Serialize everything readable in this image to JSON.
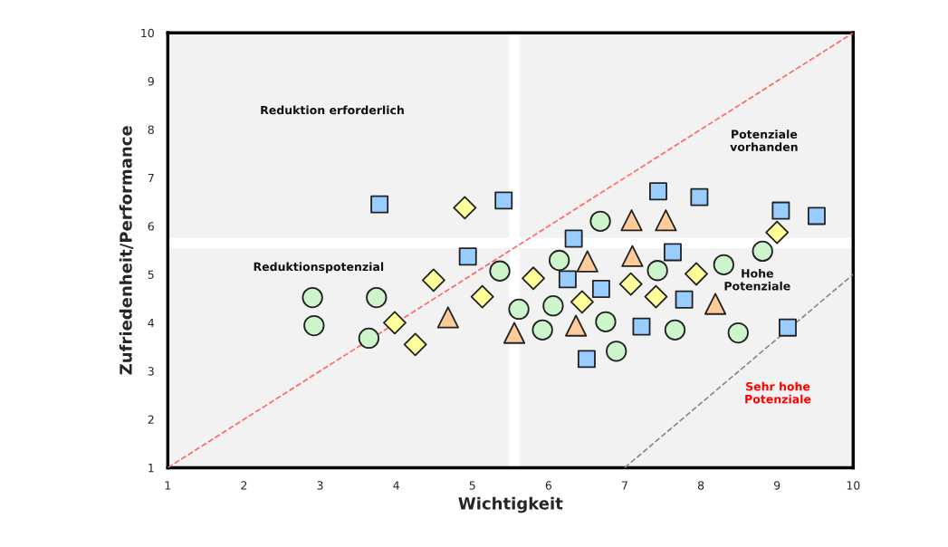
{
  "chart_data": {
    "type": "scatter",
    "xlabel": "Wichtigkeit",
    "ylabel": "Zufriedenheit/Performance",
    "xlim": [
      1,
      10
    ],
    "ylim": [
      1,
      10
    ],
    "xticks": [
      1,
      2,
      3,
      4,
      5,
      6,
      7,
      8,
      9,
      10
    ],
    "yticks": [
      1,
      2,
      3,
      4,
      5,
      6,
      7,
      8,
      9,
      10
    ],
    "grid": false,
    "legend": false,
    "series": [
      {
        "marker": "circle",
        "color": "#ccf5cc",
        "x": [
          2.9,
          2.92,
          3.74,
          3.64,
          5.36,
          5.61,
          5.92,
          6.14,
          6.06,
          6.68,
          6.75,
          6.89,
          7.43,
          7.66,
          8.3,
          8.49,
          8.81
        ],
        "values": [
          4.52,
          3.94,
          4.52,
          3.68,
          5.07,
          4.28,
          3.85,
          5.29,
          4.35,
          6.1,
          4.02,
          3.41,
          5.08,
          3.85,
          5.2,
          3.79,
          5.48
        ]
      },
      {
        "marker": "square",
        "color": "#99ccff",
        "x": [
          3.78,
          5.41,
          4.94,
          6.33,
          6.25,
          6.69,
          7.44,
          7.98,
          7.63,
          7.78,
          7.22,
          6.5,
          9.05,
          9.52,
          9.14
        ],
        "values": [
          6.45,
          6.53,
          5.37,
          5.74,
          4.9,
          4.7,
          6.72,
          6.6,
          5.46,
          4.48,
          3.92,
          3.25,
          6.32,
          6.21,
          3.9
        ]
      },
      {
        "marker": "diamond",
        "color": "#ffff99",
        "x": [
          4.9,
          4.49,
          5.13,
          3.98,
          4.25,
          5.8,
          6.44,
          7.08,
          7.41,
          7.94,
          9.0
        ],
        "values": [
          6.38,
          4.88,
          4.54,
          4.0,
          3.55,
          4.92,
          4.43,
          4.8,
          4.54,
          5.01,
          5.87
        ]
      },
      {
        "marker": "triangle",
        "color": "#ffcc99",
        "x": [
          4.68,
          5.55,
          7.09,
          7.54,
          6.51,
          7.1,
          6.36,
          8.19
        ],
        "values": [
          4.11,
          3.79,
          6.12,
          6.12,
          5.27,
          5.38,
          3.94,
          4.39
        ]
      },
      {
        "type": "line",
        "marker": "none",
        "line_style": "dashed",
        "color": "#ff6666",
        "x": [
          1,
          10
        ],
        "values": [
          1,
          10
        ]
      },
      {
        "type": "line",
        "marker": "none",
        "line_style": "dashed",
        "color": "#888888",
        "x": [
          7,
          10
        ],
        "values": [
          1,
          5
        ]
      }
    ],
    "ref_lines": [
      {
        "axis": "x",
        "value": 5.55,
        "color": "#ffffff"
      },
      {
        "axis": "y",
        "value": 5.65,
        "color": "#ffffff"
      }
    ],
    "annotations": [
      "Reduktion erforderlich",
      "Potenziale\nvorhanden",
      "Reduktionspotenzial",
      "Hohe\nPotenziale",
      "Sehr hohe\nPotenziale"
    ]
  }
}
